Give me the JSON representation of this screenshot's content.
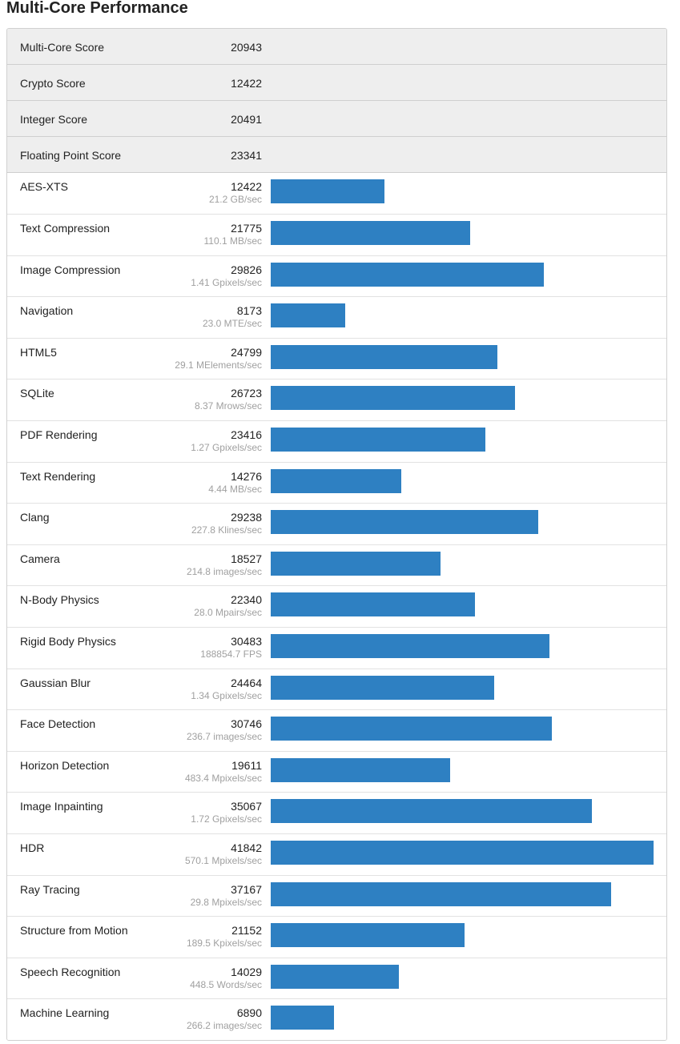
{
  "page": {
    "title": "Multi-Core Performance"
  },
  "summary": [
    {
      "name": "Multi-Core Score",
      "score": "20943"
    },
    {
      "name": "Crypto Score",
      "score": "12422"
    },
    {
      "name": "Integer Score",
      "score": "20491"
    },
    {
      "name": "Floating Point Score",
      "score": "23341"
    }
  ],
  "bar_scale_max": 41842,
  "bar_color": "#2e80c2",
  "benchmarks": [
    {
      "name": "AES-XTS",
      "score": 12422,
      "rate": "21.2 GB/sec"
    },
    {
      "name": "Text Compression",
      "score": 21775,
      "rate": "110.1 MB/sec"
    },
    {
      "name": "Image Compression",
      "score": 29826,
      "rate": "1.41 Gpixels/sec"
    },
    {
      "name": "Navigation",
      "score": 8173,
      "rate": "23.0 MTE/sec"
    },
    {
      "name": "HTML5",
      "score": 24799,
      "rate": "29.1 MElements/sec"
    },
    {
      "name": "SQLite",
      "score": 26723,
      "rate": "8.37 Mrows/sec"
    },
    {
      "name": "PDF Rendering",
      "score": 23416,
      "rate": "1.27 Gpixels/sec"
    },
    {
      "name": "Text Rendering",
      "score": 14276,
      "rate": "4.44 MB/sec"
    },
    {
      "name": "Clang",
      "score": 29238,
      "rate": "227.8 Klines/sec"
    },
    {
      "name": "Camera",
      "score": 18527,
      "rate": "214.8 images/sec"
    },
    {
      "name": "N-Body Physics",
      "score": 22340,
      "rate": "28.0 Mpairs/sec"
    },
    {
      "name": "Rigid Body Physics",
      "score": 30483,
      "rate": "188854.7 FPS"
    },
    {
      "name": "Gaussian Blur",
      "score": 24464,
      "rate": "1.34 Gpixels/sec"
    },
    {
      "name": "Face Detection",
      "score": 30746,
      "rate": "236.7 images/sec"
    },
    {
      "name": "Horizon Detection",
      "score": 19611,
      "rate": "483.4 Mpixels/sec"
    },
    {
      "name": "Image Inpainting",
      "score": 35067,
      "rate": "1.72 Gpixels/sec"
    },
    {
      "name": "HDR",
      "score": 41842,
      "rate": "570.1 Mpixels/sec"
    },
    {
      "name": "Ray Tracing",
      "score": 37167,
      "rate": "29.8 Mpixels/sec"
    },
    {
      "name": "Structure from Motion",
      "score": 21152,
      "rate": "189.5 Kpixels/sec"
    },
    {
      "name": "Speech Recognition",
      "score": 14029,
      "rate": "448.5 Words/sec"
    },
    {
      "name": "Machine Learning",
      "score": 6890,
      "rate": "266.2 images/sec"
    }
  ]
}
